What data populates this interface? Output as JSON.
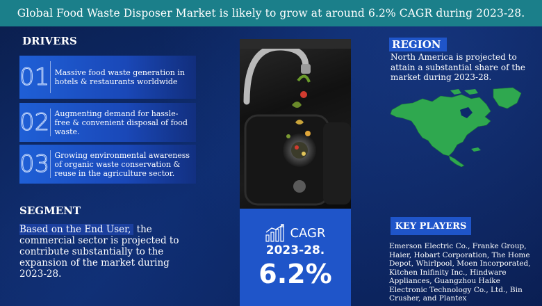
{
  "headline": "Global Food Waste Disposer Market is likely to grow at around 6.2% CAGR during 2023-28.",
  "drivers": {
    "label": "DRIVERS",
    "items": [
      {
        "num": "01",
        "text": "Massive food waste generation in hotels & restaurants worldwide"
      },
      {
        "num": "02",
        "text": "Augmenting demand for hassle-free & convenient disposal of food waste."
      },
      {
        "num": "03",
        "text": "Growing environmental awareness of organic waste conservation & reuse in the agriculture sector."
      }
    ]
  },
  "segment": {
    "label": "SEGMENT",
    "highlight": "Based on the End User,",
    "text": " the commercial sector is projected to contribute substantially to the expansion of the market during 2023-28."
  },
  "cagr": {
    "label": "CAGR",
    "period": "2023-28.",
    "value": "6.2%"
  },
  "region": {
    "label": "REGION",
    "text": "North America is projected to attain a substantial share of the market during 2023-28."
  },
  "key_players": {
    "label": "KEY PLAYERS",
    "text": "Emerson Electric Co., Franke Group, Haier, Hobart Corporation, The Home Depot, Whirlpool, Moen Incorporated, Kitchen Inifinity Inc., Hindware Appliances, Guangzhou Haike Electronic Technology Co., Ltd., Bin Crusher, and Plantex"
  },
  "colors": {
    "headline_bg": "#1b7f8a",
    "accent_blue": "#1f55c9",
    "map_green": "#2fa84f",
    "background": "#0d2a6b"
  },
  "icons": {
    "cagr": "growth-chart-icon"
  }
}
